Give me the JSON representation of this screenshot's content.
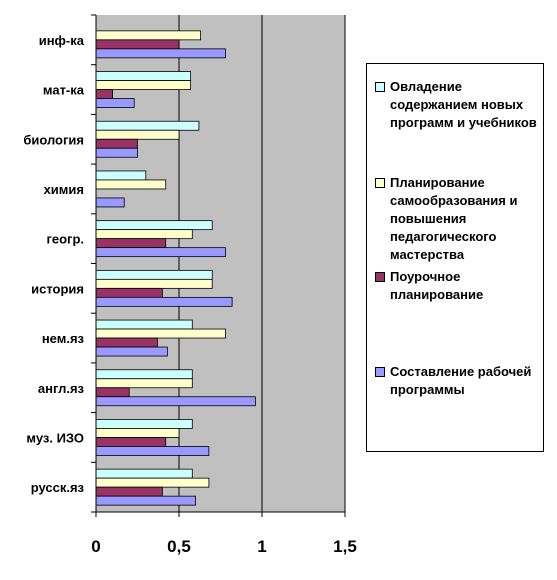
{
  "chart_data": {
    "type": "bar",
    "orientation": "horizontal",
    "categories": [
      "инф-ка",
      "мат-ка",
      "биология",
      "химия",
      "геогр.",
      "история",
      "нем.яз",
      "англ.яз",
      "муз. ИЗО",
      "русск.яз"
    ],
    "series": [
      {
        "name": "Овладение содержанием новых программ и учебников",
        "color": "#ccffff",
        "values": [
          0.0,
          0.57,
          0.62,
          0.3,
          0.7,
          0.7,
          0.58,
          0.58,
          0.58,
          0.58
        ]
      },
      {
        "name": "Планирование самообразования и повышения педагогического мастерства",
        "color": "#ffffcc",
        "values": [
          0.63,
          0.57,
          0.5,
          0.42,
          0.58,
          0.7,
          0.78,
          0.58,
          0.5,
          0.68
        ]
      },
      {
        "name": "Поурочное планирование",
        "color": "#993366",
        "values": [
          0.5,
          0.1,
          0.25,
          0.0,
          0.42,
          0.4,
          0.37,
          0.2,
          0.42,
          0.4
        ]
      },
      {
        "name": "Составление рабочей программы",
        "color": "#9999ff",
        "values": [
          0.78,
          0.23,
          0.25,
          0.17,
          0.78,
          0.82,
          0.43,
          0.96,
          0.68,
          0.6
        ]
      }
    ],
    "xlim": [
      0,
      1.5
    ],
    "xticks": [
      "0",
      "0,5",
      "1",
      "1,5"
    ],
    "xtick_values": [
      0,
      0.5,
      1,
      1.5
    ],
    "grid": "vertical major gridlines",
    "plot_background": "#c0c0c0",
    "legend_position": "right"
  }
}
